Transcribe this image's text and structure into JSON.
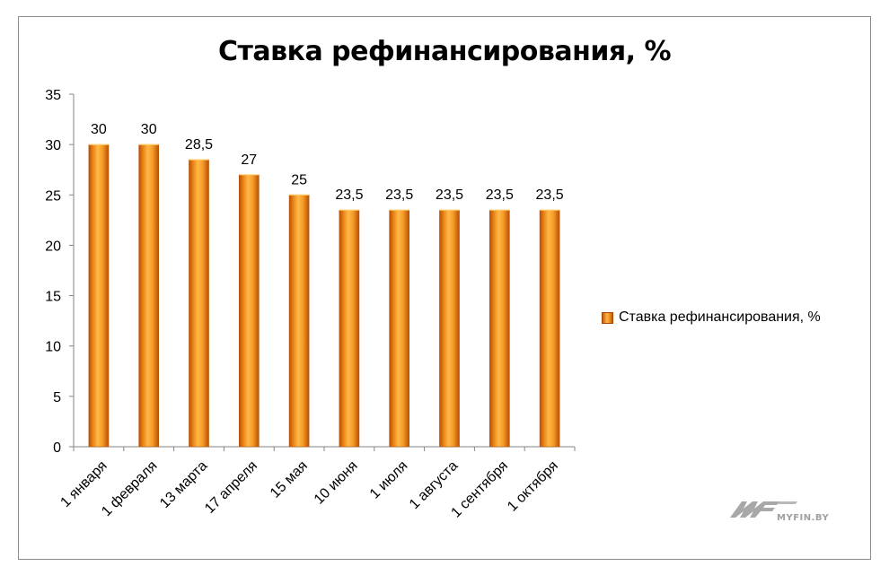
{
  "chart_data": {
    "type": "bar",
    "title": "Ставка рефинансирования, %",
    "categories": [
      "1 января",
      "1 февраля",
      "13 марта",
      "17 апреля",
      "15 мая",
      "10 июня",
      "1 июля",
      "1 августа",
      "1 сентября",
      "1 октября"
    ],
    "series": [
      {
        "name": "Ставка рефинансирования, %",
        "values": [
          30,
          30,
          28.5,
          27,
          25,
          23.5,
          23.5,
          23.5,
          23.5,
          23.5
        ],
        "labels": [
          "30",
          "30",
          "28,5",
          "27",
          "25",
          "23,5",
          "23,5",
          "23,5",
          "23,5",
          "23,5"
        ]
      }
    ],
    "y_ticks": [
      0,
      5,
      10,
      15,
      20,
      25,
      30,
      35
    ],
    "ylim": [
      0,
      35
    ],
    "xlabel": "",
    "ylabel": "",
    "grid": false,
    "legend_position": "right",
    "bar_color": "#f08c1a"
  },
  "watermark": {
    "text": "MYFIN.BY"
  }
}
